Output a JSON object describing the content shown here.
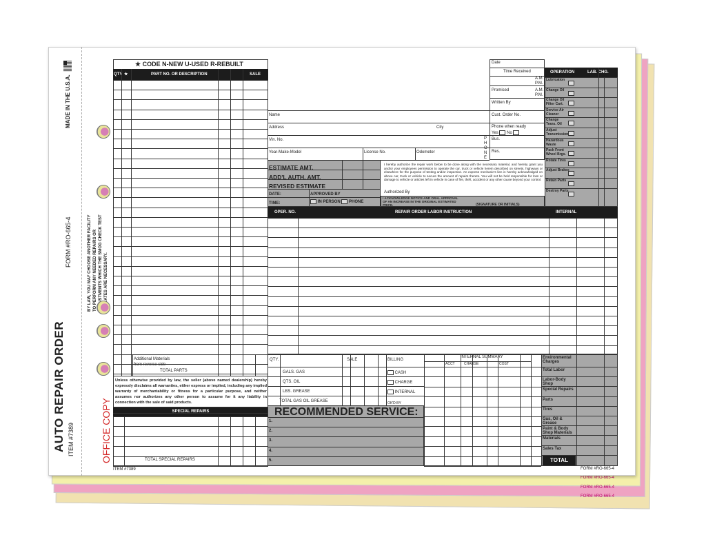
{
  "left_strip": {
    "title": "AUTO REPAIR ORDER",
    "item": "ITEM #7389",
    "copy": "OFFICE COPY",
    "form": "FORM #RO-665-4",
    "made": "MADE IN THE U.S.A.",
    "smog": [
      "BY LAW, YOU MAY CHOOSE ANOTHER FACILITY",
      "TO PERFORM ANY NEEDED REPAIRS OR",
      "ADJUSTMENTS WHICH THE SMOG CHECK TEST",
      "INDICATES ARE NECESSARY."
    ]
  },
  "parts": {
    "code": "★ CODE  N-NEW  U-USED  R-REBUILT",
    "headers": {
      "qty": "QTY",
      "star": "★",
      "desc": "PART NO. OR DESCRIPTION",
      "sale": "SALE"
    },
    "additional": [
      "Additional Materials",
      "from reverse side"
    ],
    "total_parts": "TOTAL PARTS",
    "warranty": "Unless otherwise provided by law, the seller (above named dealership) hereby expressly disclaims all warranties, either express or implied, including any implied warranty of merchantability or fitness for a particular purpose, and neither assumes nor authorizes any other person to assume for it any liability in connection with the sale of said products.",
    "special_repairs": "SPECIAL REPAIRS",
    "total_special": "TOTAL SPECIAL REPAIRS",
    "item": "ITEM #7389"
  },
  "customer": {
    "name": "Name",
    "address": "Address",
    "city": "City",
    "vin": "Vin. No.",
    "ymm": "Year-Make-Model",
    "license": "License No.",
    "odometer": "Odometer",
    "phone_vertical": "PHONE"
  },
  "right_info": {
    "date": "Date",
    "time_received": "Time Received",
    "am": "A.M.",
    "pm": "P.M.",
    "promised": "Promised",
    "written_by": "Written By",
    "cust_order": "Cust. Order No.",
    "phone_ready": "Phone when ready",
    "yes": "Yes",
    "no": "No",
    "bus": "Bus.",
    "res": "Res."
  },
  "operation": {
    "header": "OPERATION",
    "lab_chg": "LAB. CHG.",
    "items": [
      "Lubrication",
      "Change Oil",
      "Change Oil Filter Cart.",
      "Service Air Cleaner",
      "Change Trans. Oil",
      "Adjust Transmission",
      "Hazardous Waste",
      "Pack Front Wheel Brgs.",
      "Rotate Tires",
      "Adjust Brakes",
      "Retain Parts",
      "Destroy Parts"
    ]
  },
  "estimate": {
    "estimate": "ESTIMATE AMT.",
    "addl": "ADD'L AUTH. AMT.",
    "revised": "REVISED ESTIMATE",
    "date": "DATE:",
    "time": "TIME:",
    "approved": "APPROVED BY",
    "in_person": "IN PERSON",
    "phone": "PHONE"
  },
  "authorization": {
    "text": "I hereby authorize the repair work below to be done along with the necessary material, and hereby grant you and/or your employees permission to operate the car, truck or vehicle herein described on streets, highways or elsewhere for the purpose of testing and/or inspection. An express mechanic's lien is hereby acknowledged on above car, truck or vehicle to secure the amount of repairs thereto. You will not be held responsible for loss or damage to vehicle or articles left in vehicle in case of fire, theft, accident or any other cause beyond your control.",
    "authorized_by": "Authorized By",
    "acknowledge": "I ACKNOWLEDGE NOTICE AND ORAL APPROVAL OF AN INCREASE IN THE ORIGINAL ESTIMATED PRICE.",
    "signature": "(SIGNATURE OR INITIALS)"
  },
  "labor": {
    "oper_no": "OPER. NO.",
    "instruction": "REPAIR ORDER LABOR INSTRUCTION",
    "internal": "INTERNAL"
  },
  "gas": {
    "qty": "QTY.",
    "sale": "SALE",
    "billing": "BILLING",
    "rows": [
      "GALS. GAS",
      "QTS. OIL",
      "LBS. GREASE"
    ],
    "total": "TOTAL GAS OIL GREASE",
    "billing_opts": [
      "CASH",
      "CHARGE",
      "INTERNAL"
    ],
    "okd": "OK'D BY"
  },
  "internal_summary": {
    "title": "INTERNAL SUMMARY",
    "acct": "ACCT",
    "charge": "CHARGE",
    "cost": "COST"
  },
  "recommended": {
    "title": "RECOMMENDED SERVICE:",
    "items": [
      "1.",
      "2.",
      "3.",
      "4.",
      "5."
    ]
  },
  "totals": {
    "items": [
      "Environmental Charges",
      "Total Labor",
      "Labor-Body Shop",
      "Special Repairs",
      "Parts",
      "Tires",
      "Gas, Oil & Grease",
      "Paint & Body Shop Materials",
      "Materials",
      "Sales Tax"
    ],
    "total": "TOTAL"
  },
  "footer": {
    "form": "FORM #RO-665-4",
    "back_forms": [
      "FORM #RO-665-4",
      "FORM #RO-665-4",
      "FORM #RO-665-4"
    ]
  },
  "colors": {
    "sheet2": "#f3efa6",
    "sheet3": "#ef9fc0",
    "sheet4": "#f2e4a8",
    "gray": "#a8a8a8",
    "office_copy": "#d42a2a"
  }
}
